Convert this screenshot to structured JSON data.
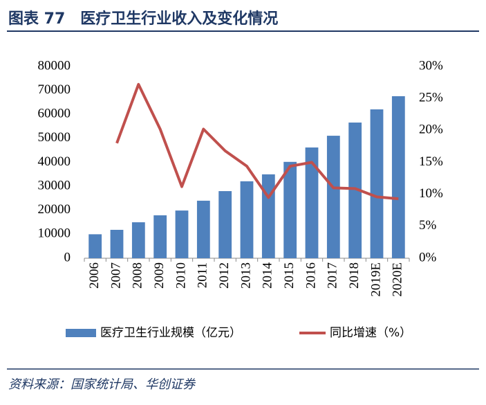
{
  "chart_data": {
    "type": "bar_line",
    "title": "图表 77　医疗卫生行业收入及变化情况",
    "source": "资料来源：国家统计局、华创证券",
    "categories": [
      "2006",
      "2007",
      "2008",
      "2009",
      "2010",
      "2011",
      "2012",
      "2013",
      "2014",
      "2015",
      "2016",
      "2017",
      "2018",
      "2019E",
      "2020E"
    ],
    "series": [
      {
        "name": "医疗卫生行业规模（亿元）",
        "type": "bar",
        "color": "#4f81bd",
        "values": [
          10000,
          11850,
          15000,
          17900,
          19900,
          24000,
          28000,
          32100,
          35000,
          40200,
          46200,
          51100,
          56600,
          62100,
          67600
        ]
      },
      {
        "name": "同比增速（%）",
        "type": "line",
        "axis": "y2",
        "color": "#c0504d",
        "values": [
          null,
          18.0,
          27.2,
          20.2,
          11.2,
          20.2,
          16.8,
          14.4,
          9.5,
          14.4,
          15.0,
          11.0,
          10.9,
          9.6,
          9.3
        ]
      }
    ],
    "ylim": [
      0,
      80000
    ],
    "yticks": [
      0,
      10000,
      20000,
      30000,
      40000,
      50000,
      60000,
      70000,
      80000
    ],
    "y2lim": [
      0,
      30
    ],
    "y2ticks": [
      {
        "value": 0,
        "label": "0%"
      },
      {
        "value": 5,
        "label": "5%"
      },
      {
        "value": 10,
        "label": "10%"
      },
      {
        "value": 15,
        "label": "15%"
      },
      {
        "value": 20,
        "label": "20%"
      },
      {
        "value": 25,
        "label": "25%"
      },
      {
        "value": 30,
        "label": "30%"
      }
    ],
    "legend": "bottom"
  }
}
